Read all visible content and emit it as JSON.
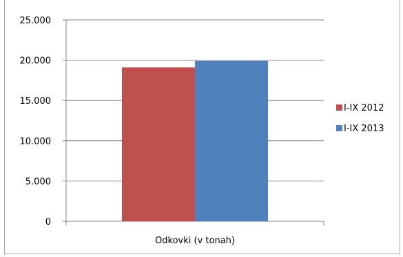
{
  "chart_data": {
    "type": "bar",
    "categories": [
      "Odkovki (v tonah)"
    ],
    "series": [
      {
        "name": "I-IX 2012",
        "values": [
          19100
        ],
        "color": "#c0504d"
      },
      {
        "name": "I-IX 2013",
        "values": [
          19900
        ],
        "color": "#4f81bd"
      }
    ],
    "ylim": [
      0,
      25000
    ],
    "yticks": [
      0,
      5000,
      10000,
      15000,
      20000,
      25000
    ],
    "ytick_labels": [
      "0",
      "5.000",
      "10.000",
      "15.000",
      "20.000",
      "25.000"
    ],
    "grid": true,
    "legend": "right",
    "title": "",
    "xlabel": "",
    "ylabel": ""
  }
}
